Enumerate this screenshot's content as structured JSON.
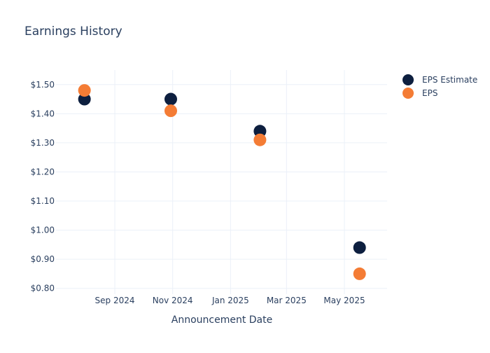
{
  "chart_data": {
    "type": "scatter",
    "title": "Earnings History",
    "xlabel": "Announcement Date",
    "ylabel": "",
    "x_tick_labels": [
      {
        "date": "2024-09-01",
        "label": "Sep 2024"
      },
      {
        "date": "2024-11-01",
        "label": "Nov 2024"
      },
      {
        "date": "2025-01-01",
        "label": "Jan 2025"
      },
      {
        "date": "2025-03-01",
        "label": "Mar 2025"
      },
      {
        "date": "2025-05-01",
        "label": "May 2025"
      }
    ],
    "x_range": [
      "2024-07-01",
      "2025-06-15"
    ],
    "y_ticks": [
      {
        "value": 0.8,
        "label": "$0.80"
      },
      {
        "value": 0.9,
        "label": "$0.90"
      },
      {
        "value": 1.0,
        "label": "$1.00"
      },
      {
        "value": 1.1,
        "label": "$1.10"
      },
      {
        "value": 1.2,
        "label": "$1.20"
      },
      {
        "value": 1.3,
        "label": "$1.30"
      },
      {
        "value": 1.4,
        "label": "$1.40"
      },
      {
        "value": 1.5,
        "label": "$1.50"
      }
    ],
    "ylim": [
      0.78,
      1.55
    ],
    "grid": true,
    "legend_position": "top-right",
    "series": [
      {
        "name": "EPS Estimate",
        "color": "#0d1f3f",
        "points": [
          {
            "x": "2024-07-31",
            "y": 1.45
          },
          {
            "x": "2024-10-30",
            "y": 1.45
          },
          {
            "x": "2025-02-01",
            "y": 1.34
          },
          {
            "x": "2025-05-17",
            "y": 0.94
          }
        ]
      },
      {
        "name": "EPS",
        "color": "#f47c35",
        "points": [
          {
            "x": "2024-07-31",
            "y": 1.48
          },
          {
            "x": "2024-10-30",
            "y": 1.41
          },
          {
            "x": "2025-02-01",
            "y": 1.31
          },
          {
            "x": "2025-05-17",
            "y": 0.85
          }
        ]
      }
    ]
  }
}
